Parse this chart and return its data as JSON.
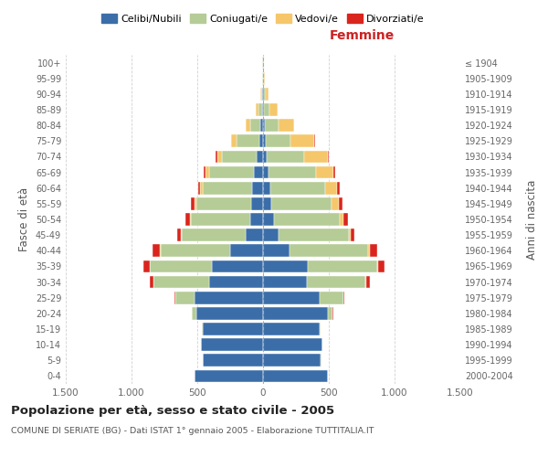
{
  "age_groups": [
    "0-4",
    "5-9",
    "10-14",
    "15-19",
    "20-24",
    "25-29",
    "30-34",
    "35-39",
    "40-44",
    "45-49",
    "50-54",
    "55-59",
    "60-64",
    "65-69",
    "70-74",
    "75-79",
    "80-84",
    "85-89",
    "90-94",
    "95-99",
    "100+"
  ],
  "birth_years": [
    "2000-2004",
    "1995-1999",
    "1990-1994",
    "1985-1989",
    "1980-1984",
    "1975-1979",
    "1970-1974",
    "1965-1969",
    "1960-1964",
    "1955-1959",
    "1950-1954",
    "1945-1949",
    "1940-1944",
    "1935-1939",
    "1930-1934",
    "1925-1929",
    "1920-1924",
    "1915-1919",
    "1910-1914",
    "1905-1909",
    "≤ 1904"
  ],
  "males": {
    "celibi": [
      520,
      460,
      470,
      460,
      510,
      520,
      410,
      390,
      250,
      130,
      100,
      90,
      80,
      70,
      50,
      30,
      20,
      8,
      4,
      2,
      2
    ],
    "coniugati": [
      0,
      1,
      2,
      5,
      30,
      150,
      420,
      470,
      530,
      490,
      450,
      420,
      380,
      340,
      260,
      170,
      80,
      30,
      10,
      3,
      2
    ],
    "vedovi": [
      0,
      0,
      0,
      0,
      0,
      0,
      1,
      1,
      2,
      3,
      5,
      10,
      20,
      30,
      40,
      40,
      30,
      15,
      5,
      1,
      0
    ],
    "divorziati": [
      0,
      0,
      0,
      1,
      2,
      5,
      30,
      50,
      60,
      30,
      35,
      30,
      15,
      10,
      8,
      5,
      2,
      0,
      0,
      0,
      0
    ]
  },
  "females": {
    "nubili": [
      490,
      440,
      450,
      430,
      490,
      430,
      330,
      340,
      200,
      120,
      80,
      60,
      55,
      45,
      30,
      20,
      15,
      8,
      4,
      2,
      2
    ],
    "coniugate": [
      0,
      1,
      2,
      8,
      40,
      180,
      450,
      530,
      600,
      530,
      500,
      460,
      420,
      360,
      280,
      190,
      100,
      40,
      15,
      4,
      2
    ],
    "vedove": [
      0,
      0,
      0,
      0,
      0,
      1,
      3,
      5,
      10,
      15,
      30,
      55,
      90,
      130,
      180,
      180,
      120,
      60,
      20,
      5,
      1
    ],
    "divorziate": [
      0,
      0,
      0,
      1,
      2,
      5,
      30,
      50,
      60,
      30,
      35,
      30,
      20,
      12,
      8,
      5,
      2,
      1,
      0,
      0,
      0
    ]
  },
  "colors": {
    "celibi": "#3b6ea8",
    "coniugati": "#b5cc96",
    "vedovi": "#f5c76a",
    "divorziati": "#d9251d"
  },
  "title": "Popolazione per età, sesso e stato civile - 2005",
  "subtitle": "COMUNE DI SERIATE (BG) - Dati ISTAT 1° gennaio 2005 - Elaborazione TUTTITALIA.IT",
  "xlabel_right": "Femmine",
  "ylabel_left": "Fasce di età",
  "ylabel_right": "Anni di nascita",
  "xlim": 1500,
  "legend_labels": [
    "Celibi/Nubili",
    "Coniugati/e",
    "Vedovi/e",
    "Divorziati/e"
  ],
  "background_color": "#ffffff",
  "grid_color": "#cccccc"
}
